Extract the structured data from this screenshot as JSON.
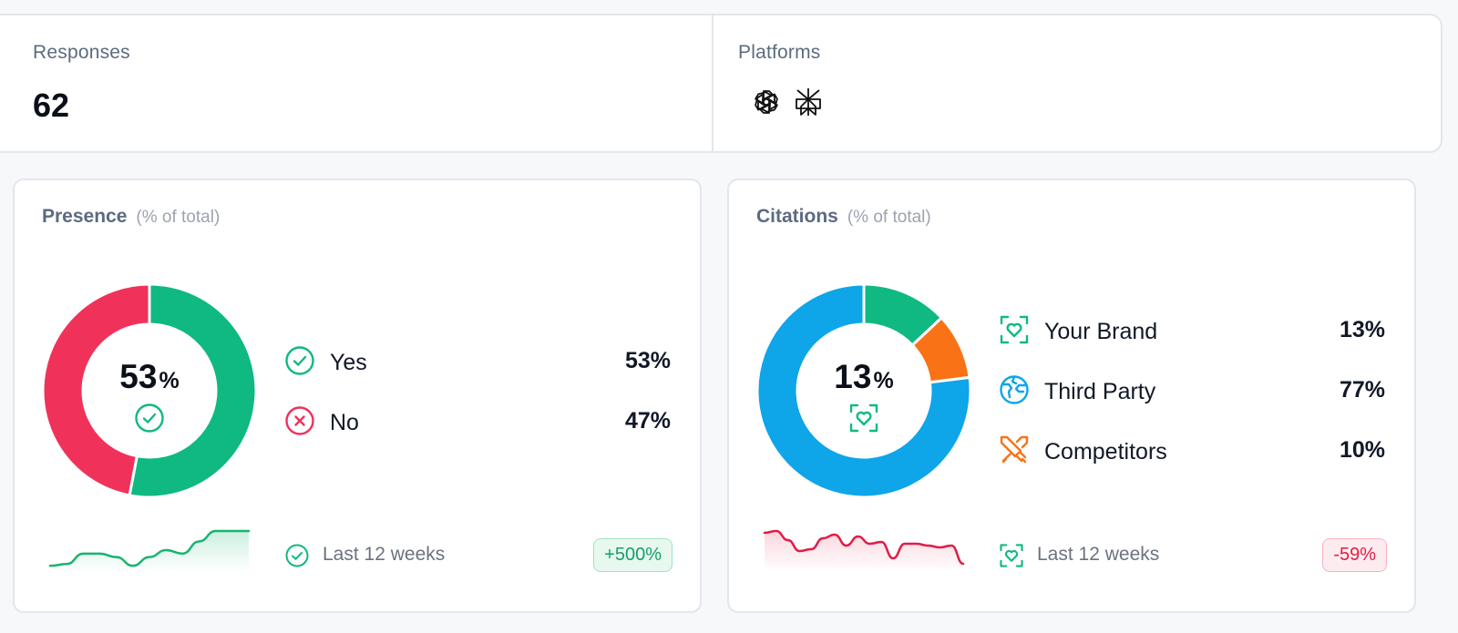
{
  "summary": {
    "responses_label": "Responses",
    "responses_value": "62",
    "platforms_label": "Platforms",
    "platforms": [
      "openai-icon",
      "perplexity-icon"
    ]
  },
  "presence": {
    "title": "Presence",
    "subtitle": "(% of total)",
    "center_value": "53",
    "center_unit": "%",
    "center_icon": "check-circle-icon",
    "legend": [
      {
        "label": "Yes",
        "value": "53%",
        "icon": "check-circle-icon",
        "color": "#10b981"
      },
      {
        "label": "No",
        "value": "47%",
        "icon": "x-circle-icon",
        "color": "#f0325b"
      }
    ],
    "footer_label": "Last 12 weeks",
    "footer_icon": "check-circle-icon",
    "change": "+500%",
    "trend_color": "#19b46e"
  },
  "citations": {
    "title": "Citations",
    "subtitle": "(% of total)",
    "center_value": "13",
    "center_unit": "%",
    "center_icon": "brand-heart-icon",
    "legend": [
      {
        "label": "Your Brand",
        "value": "13%",
        "icon": "brand-heart-icon",
        "color": "#10b981"
      },
      {
        "label": "Third Party",
        "value": "77%",
        "icon": "globe-icon",
        "color": "#0ea5e9"
      },
      {
        "label": "Competitors",
        "value": "10%",
        "icon": "swords-icon",
        "color": "#f97316"
      }
    ],
    "footer_label": "Last 12 weeks",
    "footer_icon": "brand-heart-icon",
    "change": "-59%",
    "trend_color": "#e11d48"
  },
  "chart_data": [
    {
      "type": "pie",
      "categories": [
        "Yes",
        "No"
      ],
      "values": [
        53,
        47
      ],
      "colors": [
        "#10b981",
        "#f0325b"
      ]
    },
    {
      "type": "pie",
      "categories": [
        "Your Brand",
        "Competitors",
        "Third Party"
      ],
      "values": [
        13,
        10,
        77
      ],
      "colors": [
        "#10b981",
        "#f97316",
        "#0ea5e9"
      ]
    },
    {
      "type": "area",
      "values": [
        2,
        3,
        9,
        9,
        7,
        2,
        7,
        11,
        9,
        16,
        22,
        22,
        22
      ]
    },
    {
      "type": "area",
      "values": [
        20,
        21,
        16,
        10,
        11,
        17,
        19,
        13,
        18,
        14,
        15,
        6,
        14,
        14,
        13,
        12,
        13,
        3
      ]
    }
  ]
}
